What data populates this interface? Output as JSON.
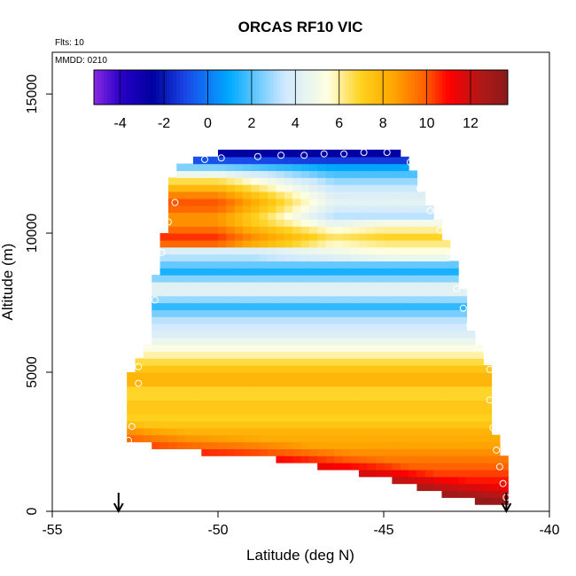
{
  "chart_data": {
    "type": "heatmap",
    "title": "ORCAS RF10 VIC",
    "subtitle_flights": "Flts: 10",
    "subtitle_date": "MMDD: 0210",
    "xlabel": "Latitude (deg N)",
    "ylabel": "Altitude (m)",
    "xlim": [
      -55,
      -40
    ],
    "ylim": [
      0,
      16500
    ],
    "x_ticks": [
      -55,
      -50,
      -45,
      -40
    ],
    "y_ticks": [
      0,
      5000,
      10000,
      15000
    ],
    "colorbar": {
      "range": [
        -5.2,
        13.7
      ],
      "ticks": [
        -4,
        -2,
        0,
        2,
        4,
        6,
        8,
        10,
        12
      ],
      "stops": [
        {
          "v": -5.2,
          "c": "#8a2be2"
        },
        {
          "v": -4.0,
          "c": "#2a00c8"
        },
        {
          "v": -2.5,
          "c": "#0000a0"
        },
        {
          "v": -1.0,
          "c": "#1a48e8"
        },
        {
          "v": 1.0,
          "c": "#00aaff"
        },
        {
          "v": 3.5,
          "c": "#cfe9ff"
        },
        {
          "v": 5.5,
          "c": "#ffffe0"
        },
        {
          "v": 7.0,
          "c": "#ffd21e"
        },
        {
          "v": 8.5,
          "c": "#ffa500"
        },
        {
          "v": 10.0,
          "c": "#ff5a00"
        },
        {
          "v": 11.0,
          "c": "#ff0000"
        },
        {
          "v": 12.5,
          "c": "#b01818"
        },
        {
          "v": 13.7,
          "c": "#8b1a1a"
        }
      ]
    },
    "domain_outline": [
      [
        -52.8,
        2600
      ],
      [
        -52.6,
        5200
      ],
      [
        -52.0,
        6200
      ],
      [
        -52.0,
        7900
      ],
      [
        -51.8,
        8800
      ],
      [
        -51.8,
        9500
      ],
      [
        -51.5,
        10500
      ],
      [
        -51.5,
        11300
      ],
      [
        -51.4,
        11900
      ],
      [
        -51.3,
        12500
      ],
      [
        -50.5,
        12700
      ],
      [
        -49.8,
        12900
      ],
      [
        -48.4,
        12950
      ],
      [
        -46.8,
        12970
      ],
      [
        -45.6,
        13000
      ],
      [
        -44.6,
        12950
      ],
      [
        -44.2,
        12600
      ],
      [
        -44.0,
        11800
      ],
      [
        -43.5,
        10800
      ],
      [
        -43.2,
        10000
      ],
      [
        -42.8,
        8800
      ],
      [
        -42.6,
        7800
      ],
      [
        -42.4,
        6600
      ],
      [
        -42.0,
        5700
      ],
      [
        -41.6,
        4500
      ],
      [
        -41.8,
        3600
      ],
      [
        -41.6,
        2500
      ],
      [
        -41.2,
        1500
      ],
      [
        -41.3,
        200
      ],
      [
        -41.9,
        300
      ],
      [
        -43.2,
        600
      ],
      [
        -44.8,
        1150
      ],
      [
        -46.4,
        1500
      ],
      [
        -47.8,
        1800
      ],
      [
        -49.2,
        2000
      ],
      [
        -50.8,
        2150
      ],
      [
        -52.0,
        2400
      ]
    ],
    "profile_min_alt": [
      [
        -52.8,
        2600
      ],
      [
        -52.0,
        2400
      ],
      [
        -50.8,
        2150
      ],
      [
        -49.2,
        2000
      ],
      [
        -47.8,
        1800
      ],
      [
        -46.4,
        1500
      ],
      [
        -44.8,
        1150
      ],
      [
        -43.2,
        600
      ],
      [
        -41.9,
        300
      ],
      [
        -41.3,
        200
      ]
    ],
    "layers": [
      {
        "alt": 0,
        "v": 12.5
      },
      {
        "alt": 1000,
        "v": 11.0
      },
      {
        "alt": 1800,
        "v": 9.5
      },
      {
        "alt": 2400,
        "v": 8.5
      },
      {
        "alt": 2900,
        "v": 8.0
      },
      {
        "alt": 3300,
        "v": 7.0
      },
      {
        "alt": 3800,
        "v": 7.5
      },
      {
        "alt": 4300,
        "v": 6.6
      },
      {
        "alt": 4700,
        "v": 8.3
      },
      {
        "alt": 5200,
        "v": 7.3
      },
      {
        "alt": 5600,
        "v": 6.0
      },
      {
        "alt": 6300,
        "v": 4.2
      },
      {
        "alt": 6900,
        "v": 3.2
      },
      {
        "alt": 7400,
        "v": 1.5
      },
      {
        "alt": 8000,
        "v": 5.0
      },
      {
        "alt": 8600,
        "v": 1.2
      },
      {
        "alt": 9300,
        "v": 3.8
      },
      {
        "alt": 9900,
        "v": 5.5
      },
      {
        "alt": 10500,
        "v": 3.0
      },
      {
        "alt": 11200,
        "v": 4.5
      },
      {
        "alt": 11900,
        "v": 2.8
      },
      {
        "alt": 12400,
        "v": 0.8
      },
      {
        "alt": 12700,
        "v": -2.0
      },
      {
        "alt": 13000,
        "v": -3.0
      }
    ],
    "west_warm_anomaly": [
      {
        "alt": 10000,
        "v": 5.0
      },
      {
        "alt": 11000,
        "v": 6.0
      },
      {
        "alt": 12000,
        "v": 3.5
      },
      {
        "alt": 12600,
        "v": 0.5
      }
    ],
    "observations": [
      [
        -52.7,
        2550
      ],
      [
        -52.6,
        3050
      ],
      [
        -52.4,
        4600
      ],
      [
        -52.4,
        5200
      ],
      [
        -52.1,
        6000
      ],
      [
        -51.9,
        7600
      ],
      [
        -51.7,
        9300
      ],
      [
        -51.5,
        10400
      ],
      [
        -51.3,
        11100
      ],
      [
        -50.4,
        12650
      ],
      [
        -49.9,
        12700
      ],
      [
        -48.8,
        12750
      ],
      [
        -48.1,
        12800
      ],
      [
        -47.4,
        12800
      ],
      [
        -46.8,
        12850
      ],
      [
        -46.2,
        12850
      ],
      [
        -45.6,
        12900
      ],
      [
        -44.9,
        12900
      ],
      [
        -44.2,
        12550
      ],
      [
        -43.9,
        11600
      ],
      [
        -43.6,
        10800
      ],
      [
        -43.3,
        10100
      ],
      [
        -43.0,
        9200
      ],
      [
        -42.8,
        8000
      ],
      [
        -42.6,
        7300
      ],
      [
        -42.4,
        6700
      ],
      [
        -42.1,
        5900
      ],
      [
        -41.8,
        5100
      ],
      [
        -41.8,
        4000
      ],
      [
        -41.7,
        3000
      ],
      [
        -41.6,
        2200
      ],
      [
        -41.5,
        1600
      ],
      [
        -41.4,
        1000
      ],
      [
        -41.3,
        500
      ]
    ],
    "arrows": [
      -53.0,
      -41.3
    ]
  }
}
